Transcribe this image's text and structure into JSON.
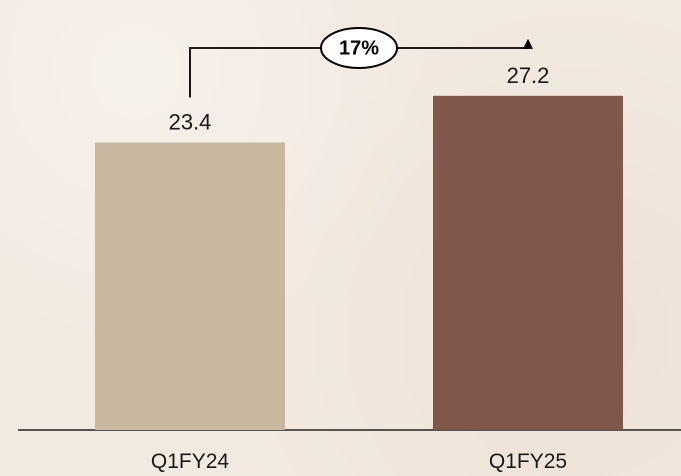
{
  "chart_data": {
    "type": "bar",
    "categories": [
      "Q1FY24",
      "Q1FY25"
    ],
    "values": [
      23.4,
      27.2
    ],
    "value_labels": [
      "23.4",
      "27.2"
    ],
    "colors": [
      "#c9b8a0",
      "#80584a"
    ],
    "title": "",
    "xlabel": "",
    "ylabel": "",
    "ylim": [
      0,
      35
    ],
    "grid": false,
    "annotation": {
      "text": "17%",
      "from_category": "Q1FY24",
      "to_category": "Q1FY25"
    }
  }
}
